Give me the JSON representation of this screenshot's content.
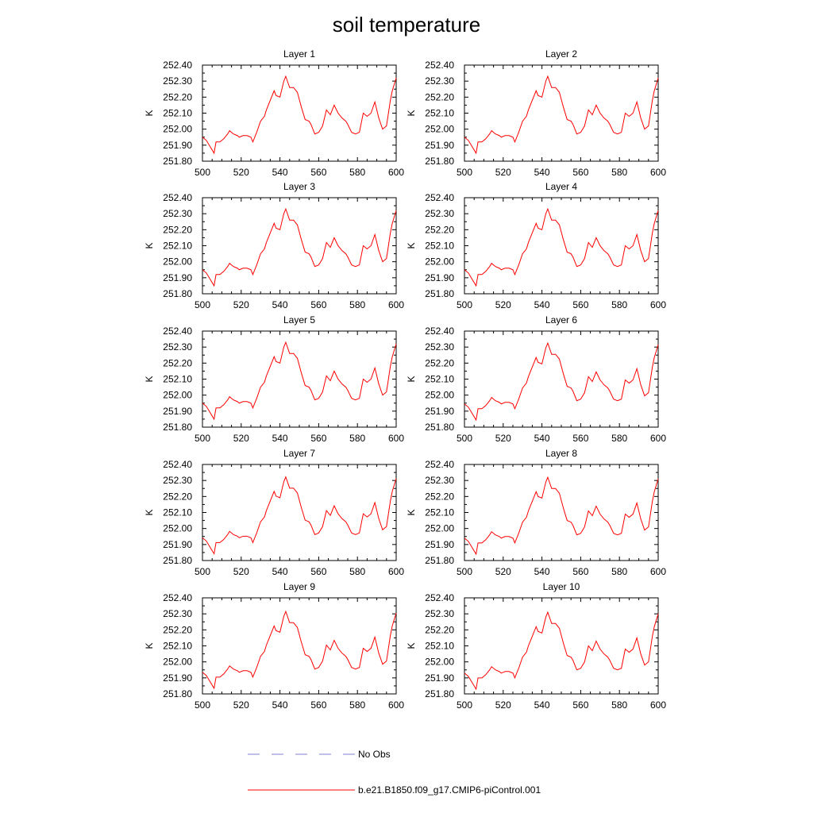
{
  "chart_data": {
    "type": "line",
    "title": "soil temperature",
    "ylabel": "K",
    "xlim": [
      500,
      600
    ],
    "ylim": [
      251.8,
      252.4
    ],
    "x_ticks": [
      500,
      520,
      540,
      560,
      580,
      600
    ],
    "y_ticks": [
      251.8,
      251.9,
      252.0,
      252.1,
      252.2,
      252.3,
      252.4
    ],
    "y_tick_labels": [
      "251.80",
      "251.90",
      "252.00",
      "252.10",
      "252.20",
      "252.30",
      "252.40"
    ],
    "series_colors": {
      "model": "#ff0000",
      "obs": "#7f7fd0"
    },
    "legend": [
      {
        "name": "No Obs",
        "style": "dashed",
        "color": "#7f7fd0"
      },
      {
        "name": "b.e21.B1850.f09_g17.CMIP6-piControl.001",
        "style": "solid",
        "color": "#ff0000"
      }
    ],
    "x": [
      500,
      502,
      504,
      506,
      507,
      509,
      511,
      513,
      514,
      516,
      518,
      519,
      521,
      523,
      525,
      526,
      528,
      530,
      532,
      533,
      535,
      537,
      538,
      540,
      542,
      543,
      545,
      547,
      549,
      551,
      553,
      555,
      556,
      558,
      560,
      562,
      564,
      566,
      568,
      570,
      572,
      574,
      575,
      577,
      579,
      581,
      583,
      585,
      587,
      589,
      591,
      593,
      595,
      597,
      598,
      600
    ],
    "base_values": [
      251.95,
      251.93,
      251.89,
      251.85,
      251.92,
      251.92,
      251.94,
      251.97,
      251.99,
      251.97,
      251.96,
      251.95,
      251.96,
      251.96,
      251.95,
      251.92,
      251.98,
      252.05,
      252.08,
      252.12,
      252.18,
      252.24,
      252.21,
      252.2,
      252.3,
      252.33,
      252.26,
      252.26,
      252.23,
      252.14,
      252.06,
      252.05,
      252.03,
      251.97,
      251.98,
      252.02,
      252.12,
      252.09,
      252.15,
      252.1,
      252.07,
      252.05,
      252.03,
      251.98,
      251.97,
      251.98,
      252.1,
      252.08,
      252.1,
      252.17,
      252.07,
      252.0,
      252.02,
      252.18,
      252.24,
      252.32
    ],
    "panels": [
      {
        "title": "Layer 1",
        "offset": 0.0
      },
      {
        "title": "Layer 2",
        "offset": 0.0
      },
      {
        "title": "Layer 3",
        "offset": 0.0
      },
      {
        "title": "Layer 4",
        "offset": 0.0
      },
      {
        "title": "Layer 5",
        "offset": 0.0
      },
      {
        "title": "Layer 6",
        "offset": -0.005
      },
      {
        "title": "Layer 7",
        "offset": -0.008
      },
      {
        "title": "Layer 8",
        "offset": -0.01
      },
      {
        "title": "Layer 9",
        "offset": -0.015
      },
      {
        "title": "Layer 10",
        "offset": -0.02
      }
    ]
  }
}
